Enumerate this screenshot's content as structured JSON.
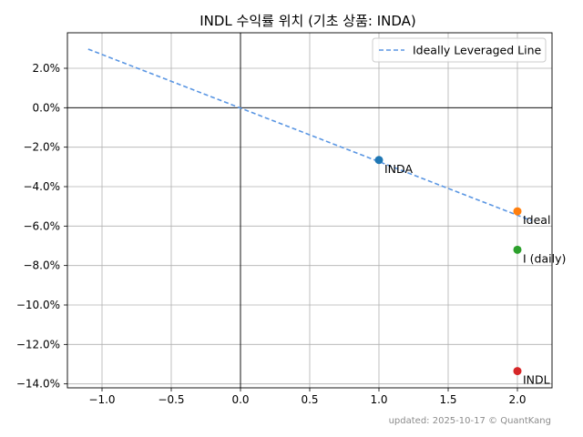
{
  "chart_data": {
    "type": "scatter",
    "title": "INDL 수익률 위치 (기초 상품: INDA)",
    "xlabel": "",
    "ylabel": "",
    "xlim": [
      -1.25,
      2.25
    ],
    "ylim": [
      -14.2,
      3.8
    ],
    "grid": true,
    "x_ticks": [
      -1.0,
      -0.5,
      0.0,
      0.5,
      1.0,
      1.5,
      2.0
    ],
    "x_tick_labels": [
      "−1.0",
      "−0.5",
      "0.0",
      "0.5",
      "1.0",
      "1.5",
      "2.0"
    ],
    "y_ticks": [
      2,
      0,
      -2,
      -4,
      -6,
      -8,
      -10,
      -12,
      -14
    ],
    "y_tick_labels": [
      "2.0%",
      "0.0%",
      "−2.0%",
      "−4.0%",
      "−6.0%",
      "−8.0%",
      "−10.0%",
      "−12.0%",
      "−14.0%"
    ],
    "reference_line": {
      "name": "Ideally Leveraged Line",
      "style": "dashed",
      "color": "#5a96e3",
      "x": [
        -1.1,
        2.1
      ],
      "y": [
        2.97,
        -5.72
      ]
    },
    "points": [
      {
        "label": "INDA",
        "x": 1.0,
        "y": -2.65,
        "color": "#1f77b4"
      },
      {
        "label": "Ideal",
        "x": 2.0,
        "y": -5.25,
        "color": "#ff7f0e"
      },
      {
        "label": "I (daily)",
        "x": 2.0,
        "y": -7.2,
        "color": "#2ca02c"
      },
      {
        "label": "INDL",
        "x": 2.0,
        "y": -13.35,
        "color": "#d62728"
      }
    ],
    "legend": {
      "placement": "top-right",
      "entries": [
        "Ideally Leveraged Line"
      ]
    }
  },
  "footer": {
    "text": "updated: 2025-10-17 © QuantKang"
  }
}
